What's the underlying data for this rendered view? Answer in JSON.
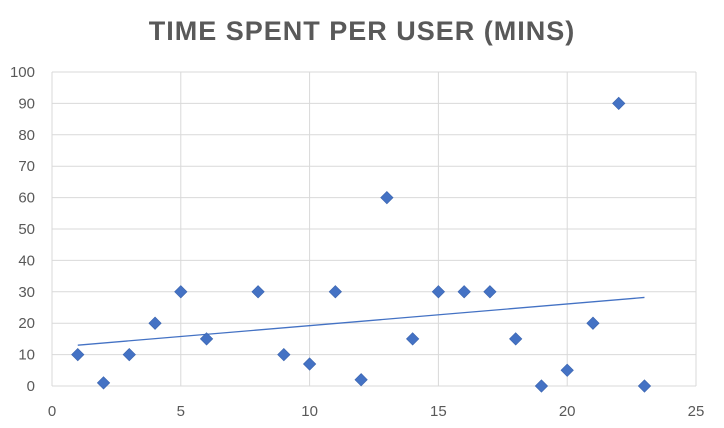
{
  "chart_data": {
    "type": "scatter",
    "title": "TIME SPENT PER USER (MINS)",
    "xlim": [
      0,
      25
    ],
    "ylim": [
      0,
      100
    ],
    "x_ticks": [
      "0",
      "5",
      "10",
      "15",
      "20",
      "25"
    ],
    "y_ticks": [
      "0",
      "10",
      "20",
      "30",
      "40",
      "50",
      "60",
      "70",
      "80",
      "90",
      "100"
    ],
    "grid": true,
    "legend": "none",
    "series": [
      {
        "marker": "diamond",
        "color": "#4472C4",
        "points": [
          {
            "x": 1,
            "y": 10
          },
          {
            "x": 2,
            "y": 1
          },
          {
            "x": 3,
            "y": 10
          },
          {
            "x": 4,
            "y": 20
          },
          {
            "x": 5,
            "y": 30
          },
          {
            "x": 6,
            "y": 15
          },
          {
            "x": 8,
            "y": 30
          },
          {
            "x": 9,
            "y": 10
          },
          {
            "x": 10,
            "y": 7
          },
          {
            "x": 11,
            "y": 30
          },
          {
            "x": 12,
            "y": 2
          },
          {
            "x": 13,
            "y": 60
          },
          {
            "x": 14,
            "y": 15
          },
          {
            "x": 15,
            "y": 30
          },
          {
            "x": 16,
            "y": 30
          },
          {
            "x": 17,
            "y": 30
          },
          {
            "x": 18,
            "y": 15
          },
          {
            "x": 19,
            "y": 0
          },
          {
            "x": 20,
            "y": 5
          },
          {
            "x": 21,
            "y": 20
          },
          {
            "x": 22,
            "y": 90
          },
          {
            "x": 23,
            "y": 0
          }
        ]
      }
    ],
    "trendline": {
      "type": "linear",
      "x": [
        1,
        23
      ],
      "y": [
        13,
        28.2
      ],
      "color": "#4472C4"
    }
  }
}
